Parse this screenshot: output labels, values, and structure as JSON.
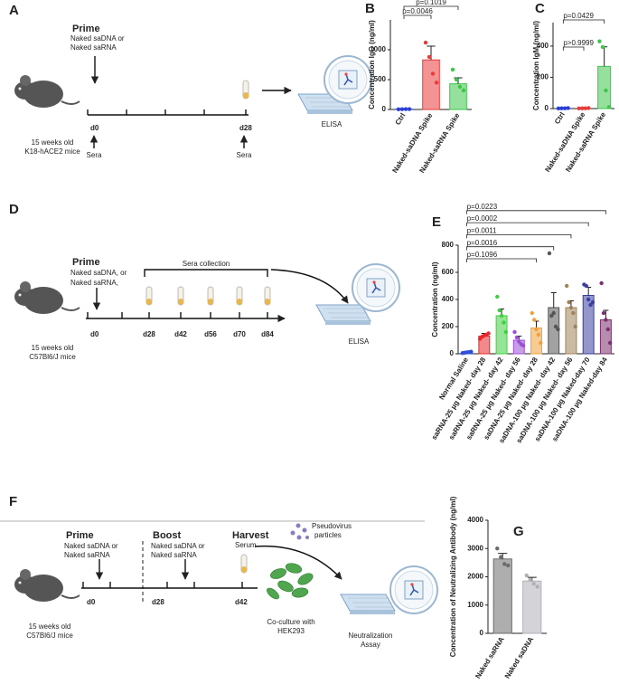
{
  "diagrams": {
    "A": {
      "label": "A",
      "prime": "Prime",
      "prime_detail": [
        "Naked saDNA or",
        "Naked saRNA"
      ],
      "mice": [
        "15 weeks old",
        "K18-hACE2 mice"
      ],
      "days": [
        "d0",
        "d28"
      ],
      "sera": [
        "Sera",
        "Sera"
      ],
      "assay": "ELISA"
    },
    "D": {
      "label": "D",
      "prime": "Prime",
      "prime_detail": [
        "Naked saDNA, or",
        "Naked saRNA,"
      ],
      "collection": "Sera collection",
      "mice": [
        "15 weeks old",
        "C57Bl6/J mice"
      ],
      "days": [
        "d0",
        "d28",
        "d42",
        "d56",
        "d70",
        "d84"
      ],
      "assay": "ELISA"
    },
    "F": {
      "label": "F",
      "prime": "Prime",
      "prime_detail": [
        "Naked saDNA or",
        "Naked saRNA"
      ],
      "boost": "Boost",
      "boost_detail": [
        "Naked saDNA or",
        "Naked saRNA"
      ],
      "harvest": "Harvest",
      "harvest_detail": "Serum",
      "pseudovirus": [
        "Pseudovirus",
        "particles"
      ],
      "coculture": [
        "Co-culture with",
        "HEK293"
      ],
      "assay": [
        "Neutralization",
        "Assay"
      ],
      "mice": [
        "15 weeks old",
        "C57Bl6/J mice"
      ],
      "days": [
        "d0",
        "d28",
        "d42"
      ]
    }
  },
  "chart_data": [
    {
      "type": "bar",
      "panel_label": "B",
      "ylabel": "Concentration IgG (ng/ml)",
      "categories": [
        "Ctrl",
        "Naked-saDNA Spike",
        "Naked-saRNA Spike"
      ],
      "values": [
        5,
        830,
        430
      ],
      "errors": [
        3,
        230,
        100
      ],
      "points": [
        [
          3,
          5,
          6,
          7
        ],
        [
          1120,
          880,
          600,
          450
        ],
        [
          667,
          500,
          380,
          320
        ]
      ],
      "colors": [
        "#2b3fd6",
        "#ea3b3b",
        "#3cc64a"
      ],
      "ylim": [
        0,
        1500
      ],
      "yticks": [
        0,
        500,
        1000
      ],
      "comparisons": [
        {
          "pair": [
            "Ctrl",
            "Naked-saDNA Spike"
          ],
          "label": "p=0.0046"
        },
        {
          "pair": [
            "Ctrl",
            "Naked-saRNA Spike"
          ],
          "label": "p=0.1019"
        }
      ]
    },
    {
      "type": "bar",
      "panel_label": "C",
      "ylabel": "Concentration IgM (ng/ml)",
      "categories": [
        "Ctrl",
        "Naked-saDNA Spike",
        "Naked-saRNA Spike"
      ],
      "values": [
        2,
        2,
        270
      ],
      "errors": [
        1,
        1,
        125
      ],
      "points": [
        [
          1,
          2,
          2,
          3
        ],
        [
          1,
          2,
          2,
          3
        ],
        [
          430,
          394,
          116,
          10
        ]
      ],
      "colors": [
        "#2b3fd6",
        "#ea3b3b",
        "#3cc64a"
      ],
      "ylim": [
        0,
        550
      ],
      "yticks": [
        0,
        200,
        400
      ],
      "comparisons": [
        {
          "pair": [
            "Ctrl",
            "Naked-saDNA Spike"
          ],
          "label": "p>0.9999"
        },
        {
          "pair": [
            "Ctrl",
            "Naked-saRNA Spike"
          ],
          "label": "p=0.0429"
        }
      ]
    },
    {
      "type": "bar",
      "panel_label": "E",
      "ylabel": "Concentration (ng/ml)",
      "categories": [
        "Normal Saline",
        "saRNA-25 µg Naked- day 28",
        "saRNA-25 µg Naked- day 42",
        "saRNA-25 µg Naked- day 56",
        "saDNA-25 µg Naked- day 28",
        "saDNA-100 µg Naked- day 42",
        "saDNA-100 µg Naked- day 56",
        "saDNA-100 µg Naked-day 70",
        "saDNA-100 µg Naked-day 84"
      ],
      "values": [
        10,
        130,
        280,
        100,
        190,
        340,
        340,
        430,
        250
      ],
      "errors": [
        3,
        20,
        50,
        30,
        50,
        110,
        50,
        60,
        70
      ],
      "points": [
        [
          5,
          8,
          10,
          12,
          15
        ],
        [
          110,
          125,
          135,
          140,
          150
        ],
        [
          420,
          320,
          280,
          230,
          160
        ],
        [
          160,
          120,
          90,
          70,
          60
        ],
        [
          300,
          250,
          180,
          140,
          80
        ],
        [
          740,
          280,
          300,
          200,
          180
        ],
        [
          500,
          380,
          340,
          300,
          200
        ],
        [
          510,
          500,
          400,
          360,
          380
        ],
        [
          520,
          300,
          250,
          180,
          80
        ]
      ],
      "colors": [
        "#2f4ed8",
        "#e8282b",
        "#3fcf3f",
        "#9b4fd6",
        "#f0a23a",
        "#555555",
        "#a0825a",
        "#3b3f9e",
        "#7a2f6e"
      ],
      "ylim": [
        0,
        800
      ],
      "yticks": [
        0,
        200,
        400,
        600,
        800
      ],
      "comparisons": [
        {
          "pair": [
            "Normal Saline",
            "saDNA-25 µg Naked- day 28"
          ],
          "label": "p=0.1096"
        },
        {
          "pair": [
            "Normal Saline",
            "saDNA-100 µg Naked- day 42"
          ],
          "label": "p=0.0016"
        },
        {
          "pair": [
            "Normal Saline",
            "saDNA-100 µg Naked- day 56"
          ],
          "label": "p=0.0011"
        },
        {
          "pair": [
            "Normal Saline",
            "saDNA-100 µg Naked-day 70"
          ],
          "label": "p=0.0002"
        },
        {
          "pair": [
            "Normal Saline",
            "saDNA-100 µg Naked-day 84"
          ],
          "label": "p=0.0223"
        }
      ]
    },
    {
      "type": "bar",
      "panel_label": "G",
      "ylabel": "Concentration of Neutralizing Antibody (ng/ml)",
      "categories": [
        "Naked saRNA",
        "Naked saDNA"
      ],
      "values": [
        2630,
        1850
      ],
      "errors": [
        200,
        130
      ],
      "points": [
        [
          3000,
          2700,
          2450,
          2400
        ],
        [
          2050,
          1900,
          1750,
          1650
        ]
      ],
      "colors": [
        "#6b6b6b",
        "#b0b0b8"
      ],
      "ylim": [
        0,
        4000
      ],
      "yticks": [
        0,
        1000,
        2000,
        3000,
        4000
      ],
      "comparisons": []
    }
  ]
}
